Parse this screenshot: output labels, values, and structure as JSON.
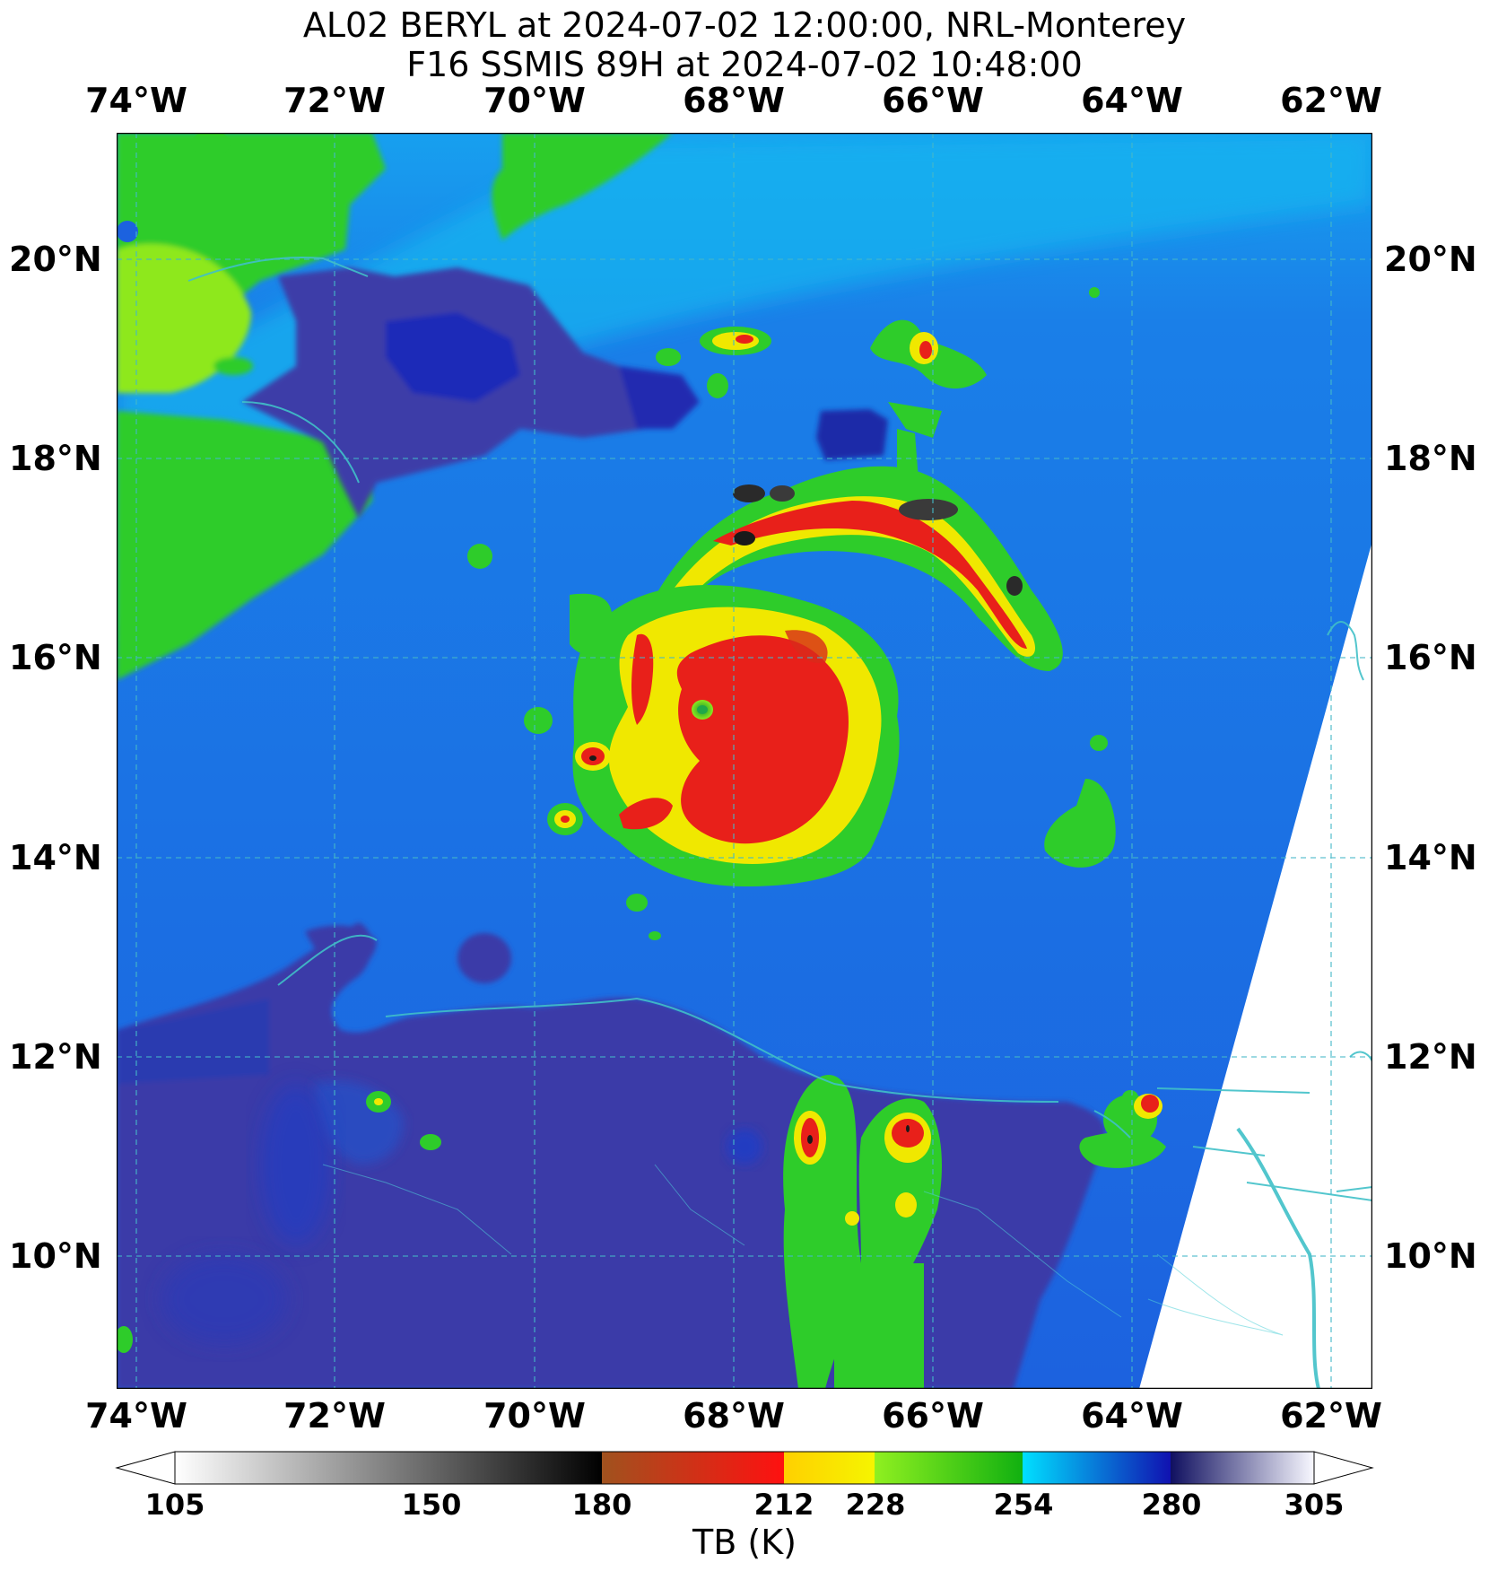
{
  "header": {
    "title_line1": "AL02 BERYL at 2024-07-02 12:00:00, NRL-Monterey",
    "title_line2": "F16 SSMIS 89H at 2024-07-02 10:48:00"
  },
  "map": {
    "lon_range": [
      -74.2,
      -61.6
    ],
    "lat_range": [
      8.7,
      21.3
    ],
    "lon_ticks": [
      {
        "value": -74,
        "label": "74°W"
      },
      {
        "value": -72,
        "label": "72°W"
      },
      {
        "value": -70,
        "label": "70°W"
      },
      {
        "value": -68,
        "label": "68°W"
      },
      {
        "value": -66,
        "label": "66°W"
      },
      {
        "value": -64,
        "label": "64°W"
      },
      {
        "value": -62,
        "label": "62°W"
      }
    ],
    "lat_ticks": [
      {
        "value": 20,
        "label": "20°N"
      },
      {
        "value": 18,
        "label": "18°N"
      },
      {
        "value": 16,
        "label": "16°N"
      },
      {
        "value": 14,
        "label": "14°N"
      },
      {
        "value": 12,
        "label": "12°N"
      },
      {
        "value": 10,
        "label": "10°N"
      }
    ],
    "storm_center": {
      "lon": -67.5,
      "lat": 14.9
    },
    "colors": {
      "background_tb": "#1c6ee6",
      "land_tb": "#3b3ba8",
      "warm_land": "#2ac02a",
      "gridline": "#45b8c8",
      "coastline": "#40c0c8",
      "no_data": "#ffffff"
    }
  },
  "colorbar": {
    "label": "TB (K)",
    "range": [
      105,
      305
    ],
    "ticks": [
      105,
      150,
      180,
      212,
      228,
      254,
      280,
      305
    ],
    "tick_labels": {
      "t105": "105",
      "t150": "150",
      "t180": "180",
      "t212": "212",
      "t228": "228",
      "t254": "254",
      "t280": "280",
      "t305": "305"
    },
    "segments": [
      {
        "from": 105,
        "to": 180,
        "c0": "#ffffff",
        "c1": "#000000"
      },
      {
        "from": 180,
        "to": 212,
        "c0": "#a0521e",
        "c1": "#ff1010"
      },
      {
        "from": 212,
        "to": 228,
        "c0": "#ffd000",
        "c1": "#f5f500"
      },
      {
        "from": 228,
        "to": 254,
        "c0": "#90f020",
        "c1": "#10b010"
      },
      {
        "from": 254,
        "to": 280,
        "c0": "#00e0ff",
        "c1": "#1010b0"
      },
      {
        "from": 280,
        "to": 305,
        "c0": "#101060",
        "c1": "#f8f8ff"
      }
    ]
  }
}
